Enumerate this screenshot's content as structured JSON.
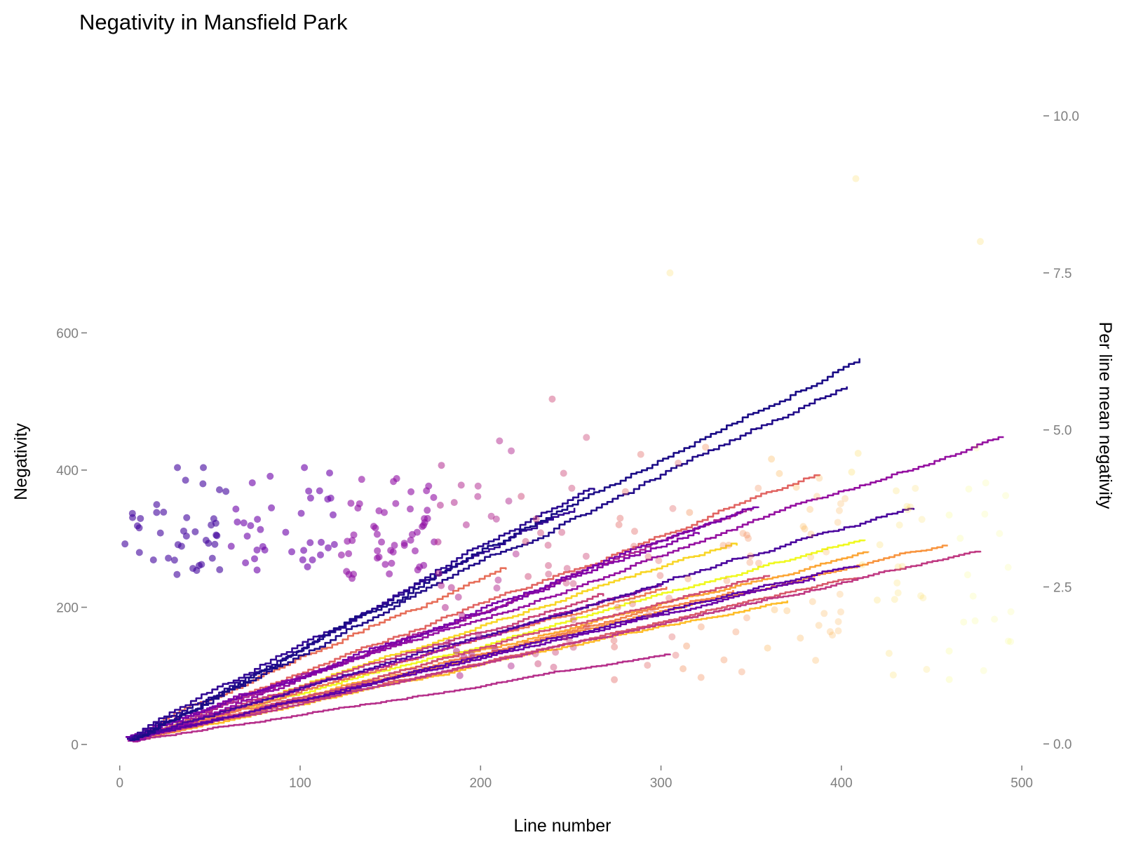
{
  "chart_data": {
    "type": "line",
    "title": "Negativity in Mansfield Park",
    "xlabel": "Line number",
    "ylabel": "Negativity",
    "y2label": "Per line mean negativity",
    "xlim": [
      -10,
      505
    ],
    "ylim": [
      -45,
      985
    ],
    "y2lim": [
      -0.5,
      10.75
    ],
    "x_ticks": [
      0,
      100,
      200,
      300,
      400,
      500
    ],
    "x_tick_labels": [
      "0",
      "100",
      "200",
      "300",
      "400",
      "500"
    ],
    "y_ticks": [
      0,
      200,
      400,
      600
    ],
    "y_tick_labels": [
      "0",
      "200",
      "400",
      "600"
    ],
    "y2_ticks": [
      0,
      2.5,
      5,
      7.5,
      10
    ],
    "y2_tick_labels": [
      "0.0",
      "2.5",
      "5.0",
      "7.5",
      "10.0"
    ],
    "grid": false,
    "legend": "none",
    "color_scale": "plasma",
    "series_note": "48 cumulative-negativity lines, one per chapter, colored by chapter order (dark purple = early, yellow = late)",
    "series": [
      {
        "color": "#1a0b86",
        "end_x": 410,
        "end_y": 563
      },
      {
        "color": "#220c8a",
        "end_x": 403,
        "end_y": 522
      },
      {
        "color": "#2a0b90",
        "end_x": 263,
        "end_y": 370
      },
      {
        "color": "#330a95",
        "end_x": 252,
        "end_y": 345
      },
      {
        "color": "#4b079e",
        "end_x": 440,
        "end_y": 342
      },
      {
        "color": "#5c02a5",
        "end_x": 410,
        "end_y": 260
      },
      {
        "color": "#6a00a8",
        "end_x": 385,
        "end_y": 238
      },
      {
        "color": "#7a04a9",
        "end_x": 354,
        "end_y": 345
      },
      {
        "color": "#8707a6",
        "end_x": 321,
        "end_y": 306
      },
      {
        "color": "#9511a1",
        "end_x": 490,
        "end_y": 448
      },
      {
        "color": "#a01a9c",
        "end_x": 300,
        "end_y": 232
      },
      {
        "color": "#ac2694",
        "end_x": 350,
        "end_y": 340
      },
      {
        "color": "#b6308b",
        "end_x": 305,
        "end_y": 130
      },
      {
        "color": "#c03a83",
        "end_x": 477,
        "end_y": 280
      },
      {
        "color": "#c9447a",
        "end_x": 268,
        "end_y": 216
      },
      {
        "color": "#d14e72",
        "end_x": 360,
        "end_y": 247
      },
      {
        "color": "#d8576b",
        "end_x": 410,
        "end_y": 243
      },
      {
        "color": "#e16462",
        "end_x": 388,
        "end_y": 392
      },
      {
        "color": "#e76f5a",
        "end_x": 214,
        "end_y": 255
      },
      {
        "color": "#ed7953",
        "end_x": 303,
        "end_y": 230
      },
      {
        "color": "#f3844b",
        "end_x": 340,
        "end_y": 225
      },
      {
        "color": "#f89540",
        "end_x": 459,
        "end_y": 290
      },
      {
        "color": "#fca636",
        "end_x": 415,
        "end_y": 280
      },
      {
        "color": "#febd2a",
        "end_x": 370,
        "end_y": 210
      },
      {
        "color": "#f8d626",
        "end_x": 342,
        "end_y": 290
      },
      {
        "color": "#f0f921",
        "end_x": 413,
        "end_y": 297
      }
    ],
    "scatter_note": "Per-line mean negativity points (right axis), one per chapter, same color scale, semi-transparent",
    "scatter_summary": {
      "early_chapters_x_range": [
        2,
        175
      ],
      "early_chapters_y2_range": [
        1.8,
        4.4
      ],
      "late_chapters_x_range": [
        175,
        495
      ],
      "late_chapters_y2_range": [
        0.9,
        9.0
      ],
      "outliers": [
        {
          "x": 408,
          "y2": 9.0
        },
        {
          "x": 305,
          "y2": 7.5
        },
        {
          "x": 477,
          "y2": 8.0
        }
      ]
    }
  }
}
